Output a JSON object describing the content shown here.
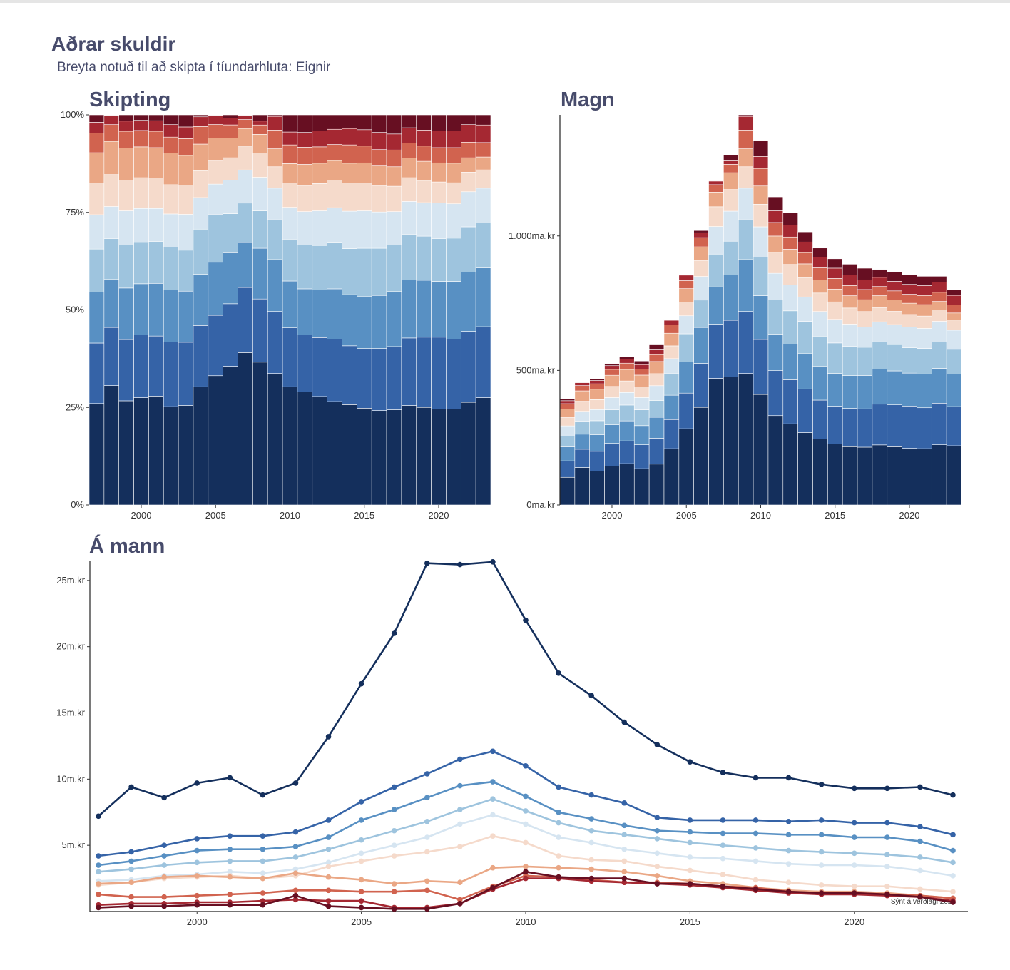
{
  "title": "Aðrar skuldir",
  "subtitle": "Breyta notuð til að skipta í tíundarhluta: Eignir",
  "panels": {
    "share": "Skipting",
    "amount": "Magn",
    "per_person": "Á mann"
  },
  "caption": "Sýnt á verðlagi 2024",
  "colors": [
    "#142f5c",
    "#3563a7",
    "#5890c3",
    "#9ec4de",
    "#d6e5f1",
    "#f5dacb",
    "#eaa785",
    "#d1634f",
    "#a52832",
    "#670f22"
  ],
  "chart_data": [
    {
      "type": "bar",
      "stacked": "percent",
      "title": "Skipting",
      "x": [
        1997,
        1998,
        1999,
        2000,
        2001,
        2002,
        2003,
        2004,
        2005,
        2006,
        2007,
        2008,
        2009,
        2010,
        2011,
        2012,
        2013,
        2014,
        2015,
        2016,
        2017,
        2018,
        2019,
        2020,
        2021,
        2022,
        2023
      ],
      "ylim": [
        0,
        100
      ],
      "y_ticks": [
        "0%",
        "25%",
        "50%",
        "75%",
        "100%"
      ],
      "x_ticks": [
        2000,
        2005,
        2010,
        2015,
        2020
      ],
      "series": [
        {
          "values": [
            26,
            30.6,
            26.7,
            27.5,
            27.9,
            25.2,
            25.5,
            30.3,
            33.4,
            35.9,
            39,
            36.6,
            33.7,
            30.3,
            29,
            27.8,
            26.5,
            25.7,
            24.8,
            24.2,
            24.4,
            25.5,
            25,
            24.6,
            24.6,
            26.3,
            27.5
          ]
        },
        {
          "values": [
            15.5,
            14.9,
            15.7,
            16.1,
            15.4,
            16.6,
            16.2,
            15.7,
            15.6,
            16.2,
            16.7,
            16.2,
            15.9,
            15.1,
            14.6,
            15.1,
            16,
            15.1,
            15.3,
            15.9,
            16.2,
            17.3,
            18,
            18.4,
            17.9,
            18.2,
            18.2
          ]
        },
        {
          "values": [
            13.1,
            12.3,
            13.2,
            13.1,
            13.5,
            13.3,
            13.1,
            13.1,
            13.7,
            13.2,
            11.5,
            13,
            13.3,
            12,
            11.8,
            12.2,
            12.9,
            13.1,
            13.3,
            13.6,
            14.1,
            14.9,
            14.6,
            14.3,
            14.8,
            15.2,
            15.1
          ]
        },
        {
          "values": [
            11,
            10.5,
            11,
            10.6,
            10.7,
            11,
            10.5,
            11.6,
            12.3,
            10.1,
            10.1,
            9.6,
            10.2,
            10.6,
            11.2,
            11.4,
            11.8,
            11.8,
            12.4,
            12.1,
            11.9,
            11.6,
            11.3,
            11,
            11.1,
            11.6,
            11.5
          ]
        },
        {
          "values": [
            8.8,
            8.2,
            8.8,
            8.7,
            8.5,
            8.5,
            9.2,
            8.1,
            7.9,
            8.7,
            8.5,
            8.6,
            8.1,
            8.3,
            8.6,
            8.9,
            9,
            9.6,
            9.6,
            9.3,
            8.6,
            8.5,
            8.6,
            9.1,
            8.8,
            9,
            8.9
          ]
        },
        {
          "values": [
            8.1,
            8.2,
            7.9,
            7.9,
            7.8,
            7.5,
            7.5,
            6.9,
            6,
            5.8,
            6.1,
            6.2,
            5.5,
            6.2,
            6.6,
            7,
            7.1,
            7.2,
            7.1,
            6.7,
            6.5,
            6.1,
            5.7,
            5.4,
            5.4,
            5,
            4.7
          ]
        },
        {
          "values": [
            7.8,
            8.5,
            8.2,
            7.9,
            7.8,
            8.1,
            7.6,
            6.8,
            5.9,
            5.1,
            4.5,
            4.8,
            4.6,
            5,
            5.5,
            5.2,
            5,
            5.1,
            5.2,
            5.1,
            5,
            5,
            4.9,
            4.9,
            5,
            3.7,
            3.3
          ]
        },
        {
          "values": [
            5,
            4.3,
            4.3,
            4.2,
            4.2,
            4.1,
            4.3,
            4.5,
            3.5,
            3.4,
            2.3,
            2.4,
            4.8,
            4.8,
            4.4,
            4.2,
            4.1,
            4.7,
            4.3,
            4.2,
            4.3,
            3.9,
            3.9,
            3.9,
            4,
            4,
            3.7
          ]
        },
        {
          "values": [
            2.8,
            2.4,
            2.6,
            2.6,
            2.7,
            3.2,
            3,
            2.5,
            2.4,
            1.8,
            1.1,
            1,
            3.5,
            3.3,
            3.8,
            4.1,
            3.9,
            4.2,
            4.2,
            4.4,
            4.1,
            3.9,
            4.1,
            4.3,
            4.3,
            4.5,
            4.5
          ]
        },
        {
          "values": [
            1.9,
            0.1,
            1.6,
            1.4,
            1.5,
            2.5,
            3.1,
            0.5,
            0.1,
            0.8,
            0.1,
            1.6,
            0.4,
            4.4,
            4.5,
            4.1,
            3.7,
            3.5,
            3.8,
            4.5,
            4.9,
            3.3,
            3.9,
            4.1,
            4.1,
            2.5,
            2.6
          ]
        }
      ]
    },
    {
      "type": "bar",
      "stacked": true,
      "title": "Magn",
      "x": [
        1997,
        1998,
        1999,
        2000,
        2001,
        2002,
        2003,
        2004,
        2005,
        2006,
        2007,
        2008,
        2009,
        2010,
        2011,
        2012,
        2013,
        2014,
        2015,
        2016,
        2017,
        2018,
        2019,
        2020,
        2021,
        2022,
        2023
      ],
      "ylim": [
        0,
        1450
      ],
      "y_ticks": [
        "0ma.kr",
        "500ma.kr",
        "1.000ma.kr"
      ],
      "y_tick_values": [
        0,
        500,
        1000
      ],
      "x_ticks": [
        2000,
        2005,
        2010,
        2015,
        2020
      ],
      "totals": [
        395,
        455,
        470,
        525,
        550,
        535,
        595,
        690,
        855,
        1020,
        1205,
        1300,
        1450,
        1355,
        1145,
        1085,
        1015,
        955,
        915,
        895,
        880,
        875,
        865,
        855,
        850,
        850,
        800
      ]
    },
    {
      "type": "line",
      "title": "Á mann",
      "x": [
        1997,
        1998,
        1999,
        2000,
        2001,
        2002,
        2003,
        2004,
        2005,
        2006,
        2007,
        2008,
        2009,
        2010,
        2011,
        2012,
        2013,
        2014,
        2015,
        2016,
        2017,
        2018,
        2019,
        2020,
        2021,
        2022,
        2023
      ],
      "ylim": [
        0,
        26.5
      ],
      "y_ticks": [
        "5m.kr",
        "10m.kr",
        "15m.kr",
        "20m.kr",
        "25m.kr"
      ],
      "y_tick_values": [
        5,
        10,
        15,
        20,
        25
      ],
      "x_ticks": [
        2000,
        2005,
        2010,
        2015,
        2020
      ],
      "series": [
        {
          "values": [
            7.2,
            9.4,
            8.6,
            9.7,
            10.1,
            8.8,
            9.7,
            13.2,
            17.2,
            21,
            26.3,
            26.2,
            26.4,
            22,
            18,
            16.3,
            14.3,
            12.6,
            11.3,
            10.5,
            10.1,
            10.1,
            9.6,
            9.3,
            9.3,
            9.4,
            8.8
          ]
        },
        {
          "values": [
            4.2,
            4.5,
            5,
            5.5,
            5.7,
            5.7,
            6,
            6.9,
            8.3,
            9.4,
            10.4,
            11.5,
            12.1,
            11,
            9.4,
            8.8,
            8.2,
            7.1,
            6.9,
            6.9,
            6.9,
            6.8,
            6.9,
            6.7,
            6.7,
            6.4,
            5.8
          ]
        },
        {
          "values": [
            3.5,
            3.8,
            4.2,
            4.6,
            4.7,
            4.7,
            4.9,
            5.6,
            6.9,
            7.7,
            8.6,
            9.5,
            9.8,
            8.7,
            7.5,
            7,
            6.5,
            6.1,
            6,
            5.9,
            5.9,
            5.8,
            5.8,
            5.6,
            5.6,
            5.3,
            4.6
          ]
        },
        {
          "values": [
            3,
            3.2,
            3.5,
            3.7,
            3.8,
            3.8,
            4.1,
            4.7,
            5.4,
            6.1,
            6.8,
            7.7,
            8.5,
            7.6,
            6.7,
            6.1,
            5.8,
            5.5,
            5.2,
            5,
            4.8,
            4.6,
            4.5,
            4.4,
            4.3,
            4.1,
            3.7
          ]
        },
        {
          "values": [
            2.3,
            2.4,
            2.7,
            2.8,
            3,
            2.9,
            3.2,
            3.7,
            4.4,
            5,
            5.6,
            6.6,
            7.3,
            6.6,
            5.6,
            5.2,
            4.7,
            4.4,
            4.1,
            4,
            3.8,
            3.6,
            3.5,
            3.5,
            3.4,
            3.1,
            2.7
          ]
        },
        {
          "values": [
            2,
            2.2,
            2.5,
            2.6,
            2.7,
            2.5,
            2.7,
            3.4,
            3.8,
            4.2,
            4.5,
            4.9,
            5.7,
            5.2,
            4.2,
            3.9,
            3.8,
            3.4,
            3.1,
            2.8,
            2.4,
            2.2,
            2,
            1.9,
            1.9,
            1.7,
            1.5
          ]
        },
        {
          "values": [
            2.1,
            2.2,
            2.6,
            2.7,
            2.6,
            2.5,
            2.9,
            2.6,
            2.4,
            2.1,
            2.3,
            2.2,
            3.3,
            3.4,
            3.3,
            3.2,
            3,
            2.7,
            2.3,
            2.1,
            1.8,
            1.6,
            1.5,
            1.5,
            1.4,
            1.2,
            1
          ]
        },
        {
          "values": [
            1.3,
            1.1,
            1.1,
            1.2,
            1.3,
            1.4,
            1.6,
            1.6,
            1.5,
            1.5,
            1.6,
            0.9,
            1.9,
            2.7,
            2.6,
            2.4,
            2.2,
            2.2,
            2.1,
            1.9,
            1.8,
            1.5,
            1.4,
            1.4,
            1.3,
            1.2,
            1
          ]
        },
        {
          "values": [
            0.5,
            0.6,
            0.6,
            0.7,
            0.7,
            0.8,
            0.9,
            0.8,
            0.8,
            0.3,
            0.3,
            0.6,
            1.7,
            2.5,
            2.5,
            2.3,
            2.2,
            2.1,
            2,
            1.8,
            1.6,
            1.4,
            1.3,
            1.3,
            1.2,
            1.1,
            0.8
          ]
        },
        {
          "values": [
            0.3,
            0.4,
            0.4,
            0.5,
            0.5,
            0.5,
            1.2,
            0.4,
            0.3,
            0.2,
            0.2,
            0.6,
            1.8,
            3,
            2.6,
            2.5,
            2.5,
            2.1,
            2.1,
            1.9,
            1.7,
            1.5,
            1.4,
            1.4,
            1.3,
            1.1,
            0.7
          ]
        }
      ]
    }
  ]
}
